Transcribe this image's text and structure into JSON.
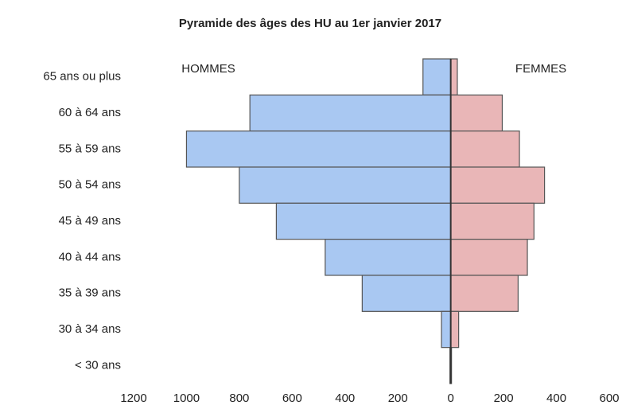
{
  "chart_data": {
    "type": "pyramid",
    "title": "Pyramide des âges des HU au 1er janvier 2017",
    "categories": [
      "65 ans ou plus",
      "60 à 64 ans",
      "55 à 59 ans",
      "50 à 54 ans",
      "45 à 49 ans",
      "40 à 44 ans",
      "35 à 39 ans",
      "30 à 34 ans",
      "< 30 ans"
    ],
    "series": [
      {
        "name": "HOMMES",
        "color": "#a9c8f2",
        "values": [
          -105,
          -760,
          -1000,
          -800,
          -660,
          -475,
          -335,
          -35,
          -3
        ]
      },
      {
        "name": "FEMMES",
        "color": "#e9b6b7",
        "values": [
          25,
          195,
          260,
          355,
          315,
          290,
          255,
          30,
          3
        ]
      }
    ],
    "xlim": [
      -1200,
      600
    ],
    "xticks": [
      {
        "value": -1200,
        "label": "1200"
      },
      {
        "value": -1000,
        "label": "1000"
      },
      {
        "value": -800,
        "label": "800"
      },
      {
        "value": -600,
        "label": "600"
      },
      {
        "value": -400,
        "label": "400"
      },
      {
        "value": -200,
        "label": "200"
      },
      0,
      200,
      400,
      600
    ]
  }
}
